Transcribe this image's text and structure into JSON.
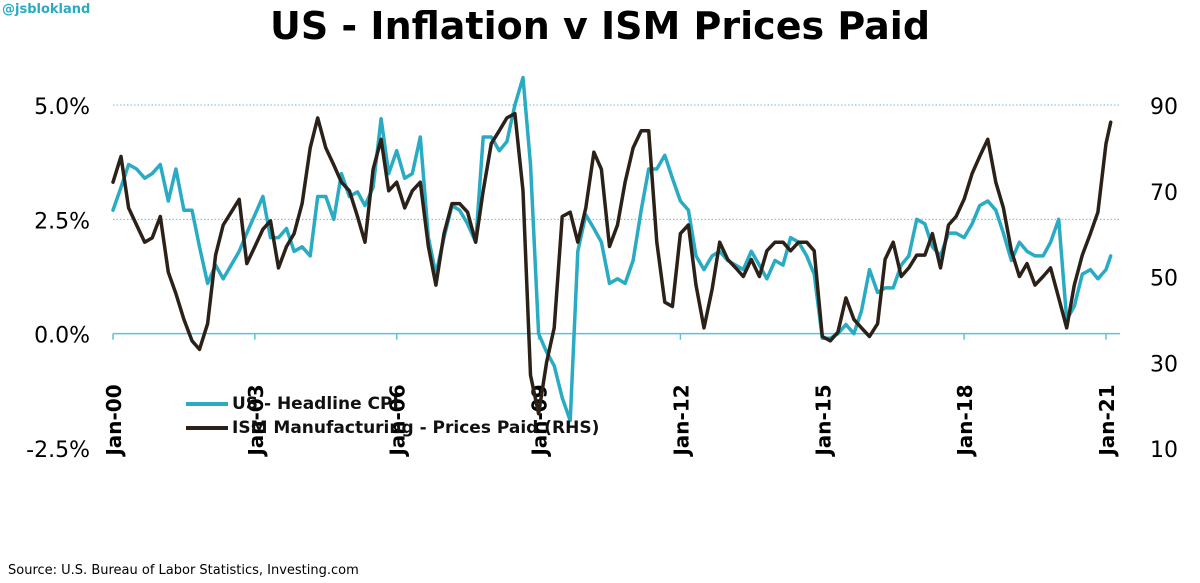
{
  "watermark": "@jsblokland",
  "source": "Source: U.S. Bureau of Labor Statistics, Investing.com",
  "colors": {
    "cpi": "#29abc3",
    "ism": "#2b2118",
    "grid": "#5ec3d5"
  },
  "chart_data": {
    "type": "line",
    "title": "US - Inflation v ISM Prices Paid",
    "y_left": {
      "ylim": [
        -2.5,
        5.0
      ],
      "ticks": [
        -2.5,
        0.0,
        2.5,
        5.0
      ],
      "tick_labels": [
        "-2.5%",
        "0.0%",
        "2.5%",
        "5.0%"
      ]
    },
    "y_right": {
      "ylim": [
        10,
        90
      ],
      "ticks": [
        10,
        30,
        50,
        70,
        90
      ],
      "tick_labels": [
        "10",
        "30",
        "50",
        "70",
        "90"
      ]
    },
    "x_ticks": [
      {
        "x": 2000.0,
        "label": "Jan-00"
      },
      {
        "x": 2003.0,
        "label": "Jan-03"
      },
      {
        "x": 2006.0,
        "label": "Jan-06"
      },
      {
        "x": 2009.0,
        "label": "Jan-09"
      },
      {
        "x": 2012.0,
        "label": "Jan-12"
      },
      {
        "x": 2015.0,
        "label": "Jan-15"
      },
      {
        "x": 2018.0,
        "label": "Jan-18"
      },
      {
        "x": 2021.0,
        "label": "Jan-21"
      }
    ],
    "xlim": [
      2000.0,
      2021.17
    ],
    "grid": true,
    "legend_placement": "bottom-left",
    "series": [
      {
        "name": "US - Headline CPI",
        "axis": "left",
        "x": [
          2000.0,
          2000.17,
          2000.33,
          2000.5,
          2000.67,
          2000.83,
          2001.0,
          2001.17,
          2001.33,
          2001.5,
          2001.67,
          2001.83,
          2002.0,
          2002.17,
          2002.33,
          2002.5,
          2002.67,
          2002.83,
          2003.0,
          2003.17,
          2003.33,
          2003.5,
          2003.67,
          2003.83,
          2004.0,
          2004.17,
          2004.33,
          2004.5,
          2004.67,
          2004.83,
          2005.0,
          2005.17,
          2005.33,
          2005.5,
          2005.67,
          2005.83,
          2006.0,
          2006.17,
          2006.33,
          2006.5,
          2006.67,
          2006.83,
          2007.0,
          2007.17,
          2007.33,
          2007.5,
          2007.67,
          2007.83,
          2008.0,
          2008.17,
          2008.33,
          2008.5,
          2008.67,
          2008.83,
          2009.0,
          2009.17,
          2009.33,
          2009.5,
          2009.67,
          2009.83,
          2010.0,
          2010.17,
          2010.33,
          2010.5,
          2010.67,
          2010.83,
          2011.0,
          2011.17,
          2011.33,
          2011.5,
          2011.67,
          2011.83,
          2012.0,
          2012.17,
          2012.33,
          2012.5,
          2012.67,
          2012.83,
          2013.0,
          2013.17,
          2013.33,
          2013.5,
          2013.67,
          2013.83,
          2014.0,
          2014.17,
          2014.33,
          2014.5,
          2014.67,
          2014.83,
          2015.0,
          2015.17,
          2015.33,
          2015.5,
          2015.67,
          2015.83,
          2016.0,
          2016.17,
          2016.33,
          2016.5,
          2016.67,
          2016.83,
          2017.0,
          2017.17,
          2017.33,
          2017.5,
          2017.67,
          2017.83,
          2018.0,
          2018.17,
          2018.33,
          2018.5,
          2018.67,
          2018.83,
          2019.0,
          2019.17,
          2019.33,
          2019.5,
          2019.67,
          2019.83,
          2020.0,
          2020.17,
          2020.33,
          2020.5,
          2020.67,
          2020.83,
          2021.0,
          2021.1
        ],
        "values": [
          2.7,
          3.2,
          3.7,
          3.6,
          3.4,
          3.5,
          3.7,
          2.9,
          3.6,
          2.7,
          2.7,
          1.9,
          1.1,
          1.5,
          1.2,
          1.5,
          1.8,
          2.2,
          2.6,
          3.0,
          2.1,
          2.1,
          2.3,
          1.8,
          1.9,
          1.7,
          3.0,
          3.0,
          2.5,
          3.5,
          3.0,
          3.1,
          2.8,
          3.2,
          4.7,
          3.5,
          4.0,
          3.4,
          3.5,
          4.3,
          2.1,
          1.3,
          2.1,
          2.8,
          2.7,
          2.4,
          2.0,
          4.3,
          4.3,
          4.0,
          4.2,
          5.0,
          5.6,
          3.7,
          0.0,
          -0.4,
          -0.7,
          -1.4,
          -1.9,
          1.8,
          2.6,
          2.3,
          2.0,
          1.1,
          1.2,
          1.1,
          1.6,
          2.7,
          3.6,
          3.6,
          3.9,
          3.4,
          2.9,
          2.7,
          1.7,
          1.4,
          1.7,
          1.8,
          1.6,
          1.5,
          1.4,
          1.8,
          1.5,
          1.2,
          1.6,
          1.5,
          2.1,
          2.0,
          1.7,
          1.3,
          -0.1,
          -0.1,
          0.0,
          0.2,
          0.0,
          0.5,
          1.4,
          0.9,
          1.0,
          1.0,
          1.5,
          1.7,
          2.5,
          2.4,
          1.9,
          1.7,
          2.2,
          2.2,
          2.1,
          2.4,
          2.8,
          2.9,
          2.7,
          2.2,
          1.6,
          2.0,
          1.8,
          1.7,
          1.7,
          2.0,
          2.5,
          0.3,
          0.6,
          1.3,
          1.4,
          1.2,
          1.4,
          1.7
        ]
      },
      {
        "name": "ISM Manufacturing - Prices Paid (RHS)",
        "axis": "right",
        "x": [
          2000.0,
          2000.17,
          2000.33,
          2000.5,
          2000.67,
          2000.83,
          2001.0,
          2001.17,
          2001.33,
          2001.5,
          2001.67,
          2001.83,
          2002.0,
          2002.17,
          2002.33,
          2002.5,
          2002.67,
          2002.83,
          2003.0,
          2003.17,
          2003.33,
          2003.5,
          2003.67,
          2003.83,
          2004.0,
          2004.17,
          2004.33,
          2004.5,
          2004.67,
          2004.83,
          2005.0,
          2005.17,
          2005.33,
          2005.5,
          2005.67,
          2005.83,
          2006.0,
          2006.17,
          2006.33,
          2006.5,
          2006.67,
          2006.83,
          2007.0,
          2007.17,
          2007.33,
          2007.5,
          2007.67,
          2007.83,
          2008.0,
          2008.17,
          2008.33,
          2008.5,
          2008.67,
          2008.83,
          2009.0,
          2009.17,
          2009.33,
          2009.5,
          2009.67,
          2009.83,
          2010.0,
          2010.17,
          2010.33,
          2010.5,
          2010.67,
          2010.83,
          2011.0,
          2011.17,
          2011.33,
          2011.5,
          2011.67,
          2011.83,
          2012.0,
          2012.17,
          2012.33,
          2012.5,
          2012.67,
          2012.83,
          2013.0,
          2013.17,
          2013.33,
          2013.5,
          2013.67,
          2013.83,
          2014.0,
          2014.17,
          2014.33,
          2014.5,
          2014.67,
          2014.83,
          2015.0,
          2015.17,
          2015.33,
          2015.5,
          2015.67,
          2015.83,
          2016.0,
          2016.17,
          2016.33,
          2016.5,
          2016.67,
          2016.83,
          2017.0,
          2017.17,
          2017.33,
          2017.5,
          2017.67,
          2017.83,
          2018.0,
          2018.17,
          2018.33,
          2018.5,
          2018.67,
          2018.83,
          2019.0,
          2019.17,
          2019.33,
          2019.5,
          2019.67,
          2019.83,
          2020.0,
          2020.17,
          2020.33,
          2020.5,
          2020.67,
          2020.83,
          2021.0,
          2021.1
        ],
        "values": [
          72,
          78,
          66,
          62,
          58,
          59,
          64,
          51,
          46,
          40,
          35,
          33,
          39,
          55,
          62,
          65,
          68,
          53,
          57,
          61,
          63,
          52,
          57,
          60,
          67,
          80,
          87,
          80,
          76,
          72,
          70,
          64,
          58,
          75,
          82,
          70,
          72,
          66,
          70,
          72,
          57,
          48,
          60,
          67,
          67,
          65,
          58,
          70,
          81,
          84,
          87,
          88,
          70,
          27,
          18,
          30,
          38,
          64,
          65,
          58,
          66,
          79,
          75,
          57,
          62,
          72,
          80,
          84,
          84,
          58,
          44,
          43,
          60,
          62,
          48,
          38,
          47,
          58,
          54,
          52,
          50,
          54,
          50,
          56,
          58,
          58,
          56,
          58,
          58,
          56,
          36,
          35,
          37,
          45,
          40,
          38,
          36,
          39,
          54,
          58,
          50,
          52,
          55,
          55,
          60,
          52,
          62,
          64,
          68,
          74,
          78,
          82,
          72,
          66,
          56,
          50,
          53,
          48,
          50,
          52,
          45,
          38,
          48,
          55,
          60,
          65,
          81,
          86
        ]
      }
    ]
  }
}
